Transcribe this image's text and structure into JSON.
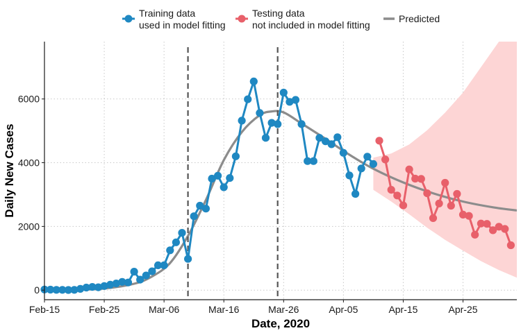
{
  "chart_data": {
    "type": "line",
    "xlabel": "Date, 2020",
    "ylabel": "Daily New Cases",
    "x_ticks": [
      "Feb-15",
      "Feb-25",
      "Mar-06",
      "Mar-16",
      "Mar-26",
      "Apr-05",
      "Apr-15",
      "Apr-25"
    ],
    "y_ticks": [
      0,
      2000,
      4000,
      6000
    ],
    "xlim": [
      "2020-02-15",
      "2020-05-04"
    ],
    "ylim": [
      -300,
      7800
    ],
    "grid": true,
    "legend_position": "top",
    "vlines": [
      "2020-03-10",
      "2020-03-25"
    ],
    "colors": {
      "training": "#1f88c2",
      "testing": "#e8606a",
      "predicted": "#8c8c8c",
      "band": "#fdd5d5",
      "vline": "#555555"
    },
    "series": [
      {
        "name": "Training data\nused in model fitting",
        "legend_lines": [
          "Training data",
          "used in model fitting"
        ],
        "x": [
          "2020-02-15",
          "2020-02-16",
          "2020-02-17",
          "2020-02-18",
          "2020-02-19",
          "2020-02-20",
          "2020-02-21",
          "2020-02-22",
          "2020-02-23",
          "2020-02-24",
          "2020-02-25",
          "2020-02-26",
          "2020-02-27",
          "2020-02-28",
          "2020-02-29",
          "2020-03-01",
          "2020-03-02",
          "2020-03-03",
          "2020-03-04",
          "2020-03-05",
          "2020-03-06",
          "2020-03-07",
          "2020-03-08",
          "2020-03-09",
          "2020-03-10",
          "2020-03-11",
          "2020-03-12",
          "2020-03-13",
          "2020-03-14",
          "2020-03-15",
          "2020-03-16",
          "2020-03-17",
          "2020-03-18",
          "2020-03-19",
          "2020-03-20",
          "2020-03-21",
          "2020-03-22",
          "2020-03-23",
          "2020-03-24",
          "2020-03-25",
          "2020-03-26",
          "2020-03-27",
          "2020-03-28",
          "2020-03-29",
          "2020-03-30",
          "2020-03-31",
          "2020-04-01",
          "2020-04-02",
          "2020-04-03",
          "2020-04-04",
          "2020-04-05",
          "2020-04-06",
          "2020-04-07",
          "2020-04-08",
          "2020-04-09",
          "2020-04-10"
        ],
        "values": [
          20,
          15,
          10,
          10,
          5,
          10,
          40,
          80,
          100,
          90,
          130,
          170,
          210,
          260,
          240,
          580,
          330,
          460,
          590,
          780,
          780,
          1250,
          1500,
          1800,
          980,
          2320,
          2650,
          2560,
          3500,
          3590,
          3230,
          3520,
          4200,
          5320,
          5990,
          6550,
          5560,
          4780,
          5250,
          5210,
          6200,
          5910,
          5970,
          5210,
          4050,
          4050,
          4780,
          4670,
          4580,
          4800,
          4310,
          3600,
          3020,
          3820,
          4190,
          3960
        ]
      },
      {
        "name": "Testing data\nnot included in model fitting",
        "legend_lines": [
          "Testing data",
          "not included in model fitting"
        ],
        "x": [
          "2020-04-11",
          "2020-04-12",
          "2020-04-13",
          "2020-04-14",
          "2020-04-15",
          "2020-04-16",
          "2020-04-17",
          "2020-04-18",
          "2020-04-19",
          "2020-04-20",
          "2020-04-21",
          "2020-04-22",
          "2020-04-23",
          "2020-04-24",
          "2020-04-25",
          "2020-04-26",
          "2020-04-27",
          "2020-04-28",
          "2020-04-29",
          "2020-04-30",
          "2020-05-01",
          "2020-05-02",
          "2020-05-03"
        ],
        "values": [
          4690,
          4100,
          3150,
          2970,
          2660,
          3790,
          3500,
          3490,
          3040,
          2260,
          2720,
          3370,
          2650,
          3020,
          2370,
          2330,
          1740,
          2090,
          2080,
          1880,
          1990,
          1920,
          1410
        ]
      },
      {
        "name": "Predicted",
        "legend_lines": [
          "Predicted"
        ],
        "x": [
          "2020-02-15",
          "2020-02-20",
          "2020-02-25",
          "2020-03-01",
          "2020-03-04",
          "2020-03-07",
          "2020-03-10",
          "2020-03-13",
          "2020-03-16",
          "2020-03-19",
          "2020-03-22",
          "2020-03-24",
          "2020-03-26",
          "2020-03-29",
          "2020-04-02",
          "2020-04-06",
          "2020-04-10",
          "2020-04-15",
          "2020-04-20",
          "2020-04-25",
          "2020-04-30",
          "2020-05-04"
        ],
        "values": [
          0,
          10,
          50,
          200,
          430,
          850,
          1700,
          2830,
          4080,
          4960,
          5490,
          5610,
          5580,
          5230,
          4750,
          4250,
          3810,
          3380,
          3040,
          2780,
          2600,
          2500
        ]
      }
    ],
    "prediction_band": {
      "x": [
        "2020-04-10",
        "2020-04-13",
        "2020-04-16",
        "2020-04-19",
        "2020-04-22",
        "2020-04-25",
        "2020-04-28",
        "2020-05-01",
        "2020-05-04"
      ],
      "lower": [
        3150,
        2780,
        2380,
        1960,
        1580,
        1240,
        910,
        630,
        390
      ],
      "upper": [
        4160,
        4290,
        4570,
        5020,
        5570,
        6200,
        7000,
        7800,
        7800
      ]
    }
  }
}
